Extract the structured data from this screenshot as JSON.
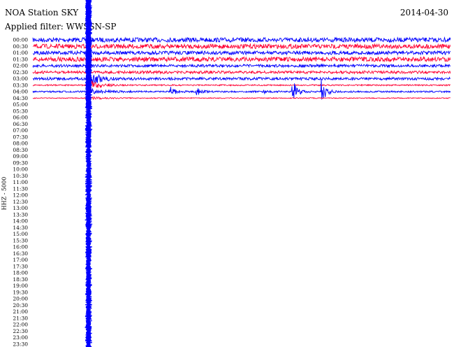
{
  "header": {
    "station": "NOA Station SKY",
    "date": "2014-04-30",
    "filter": "Applied filter: WWSSN-SP"
  },
  "chart_data": {
    "type": "line",
    "title": "NOA Station SKY",
    "channel_label": "HHZ - 5000",
    "row_minutes": 30,
    "row_labels": [
      "00:00",
      "00:30",
      "01:00",
      "01:30",
      "02:00",
      "02:30",
      "03:00",
      "03:30",
      "04:00",
      "04:30",
      "05:00",
      "05:30",
      "06:00",
      "06:30",
      "07:00",
      "07:30",
      "08:00",
      "08:30",
      "09:00",
      "09:30",
      "10:00",
      "10:30",
      "11:00",
      "11:30",
      "12:00",
      "12:30",
      "13:00",
      "13:30",
      "14:00",
      "14:30",
      "15:00",
      "15:30",
      "16:00",
      "16:30",
      "17:00",
      "17:30",
      "18:00",
      "18:30",
      "19:00",
      "19:30",
      "20:00",
      "20:30",
      "21:00",
      "21:30",
      "22:00",
      "22:30",
      "23:00",
      "23:30"
    ],
    "rows_with_data": 10,
    "row_noise_level": [
      1,
      1,
      0.8,
      1,
      0.6,
      0.6,
      0.6,
      0.3,
      0.35,
      0.2
    ],
    "series_colors": [
      "#0000ff",
      "#ff0033"
    ],
    "main_event": {
      "minute": 4
    },
    "aftershocks": [
      {
        "row": "04:00",
        "minute": 9.8,
        "amp": 1.2
      },
      {
        "row": "04:00",
        "minute": 11.7,
        "amp": 0.8
      },
      {
        "row": "04:00",
        "minute": 16.5,
        "amp": 0.3
      },
      {
        "row": "04:00",
        "minute": 18.6,
        "amp": 2.2
      },
      {
        "row": "04:00",
        "minute": 20.7,
        "amp": 2.0
      }
    ]
  }
}
